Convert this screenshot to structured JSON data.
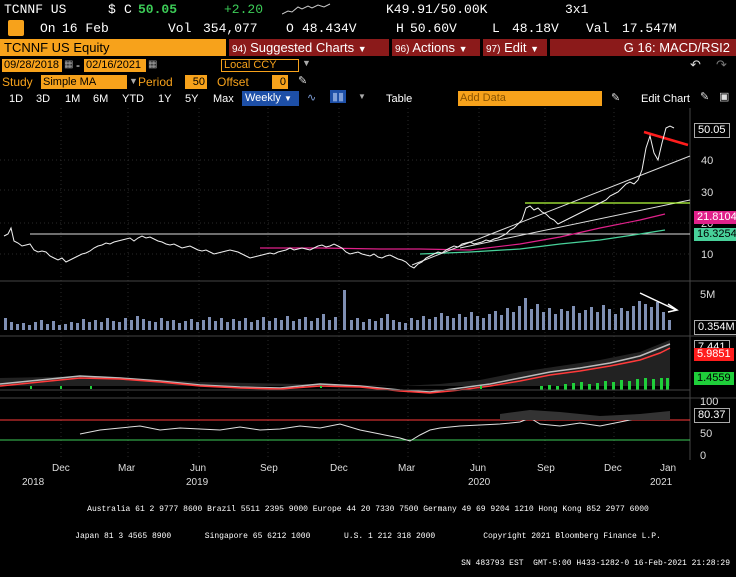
{
  "header": {
    "ticker": "TCNNF US",
    "currency_symbol": "$",
    "c_label": "C",
    "last_price": "50.05",
    "change": "+2.20",
    "bid_ask": "K49.91/50.00K",
    "size": "3x1",
    "on_label": "On",
    "date": "16 Feb",
    "vol_label": "Vol",
    "volume": "354,077",
    "open_label": "O",
    "open": "48.434V",
    "high_label": "H",
    "high": "50.60V",
    "low_label": "L",
    "low": "48.18V",
    "val_label": "Val",
    "value": "17.547M"
  },
  "toolbar": {
    "title": "TCNNF US Equity",
    "suggested_num": "94)",
    "suggested": "Suggested Charts",
    "actions_num": "96)",
    "actions": "Actions",
    "edit_num": "97)",
    "edit": "Edit",
    "chart_id": "G 16: MACD/RSI2"
  },
  "range": {
    "start": "09/28/2018",
    "end": "02/16/2021",
    "currency": "Local CCY"
  },
  "study": {
    "label": "Study",
    "type": "Simple MA",
    "period_label": "Period",
    "period": "50",
    "offset_label": "Offset",
    "offset": "0"
  },
  "periods": {
    "items": [
      "1D",
      "3D",
      "1M",
      "6M",
      "YTD",
      "1Y",
      "5Y",
      "Max"
    ],
    "frequency": "Weekly",
    "table": "Table",
    "add_data_placeholder": "Add Data",
    "edit_chart": "Edit Chart"
  },
  "chart_data": {
    "type": "line",
    "price_axis_ticks": [
      "50.05",
      "40",
      "30",
      "20",
      "10"
    ],
    "price_tags": {
      "last": "50.05",
      "ma_short": "21.8104",
      "ma_long": "16.3254"
    },
    "volume_axis_ticks": [
      "5M"
    ],
    "volume_last": "0.354M",
    "macd_tags": {
      "macd": "7.441",
      "signal": "5.9851",
      "hist": "1.4559"
    },
    "rsi_axis_ticks": [
      "100",
      "50",
      "0"
    ],
    "rsi_last": "80.37",
    "x_labels": [
      "Dec",
      "Mar",
      "Jun",
      "Sep",
      "Dec",
      "Mar",
      "Jun",
      "Sep",
      "Dec",
      "Jan"
    ],
    "year_labels": [
      "2018",
      "2019",
      "2020",
      "2021"
    ],
    "colors": {
      "price": "#ffffff",
      "ma_short": "#e0218a",
      "ma_long": "#48d19a",
      "volume": "#7f8fb3",
      "macd_signal": "#ff3a3a",
      "histogram": "#1fcf3a",
      "trend_red": "#ff1d1d",
      "trend_green": "#b5ff3c"
    }
  },
  "footer": {
    "line1": "Australia 61 2 9777 8600 Brazil 5511 2395 9000 Europe 44 20 7330 7500 Germany 49 69 9204 1210 Hong Kong 852 2977 6000",
    "line2": "Japan 81 3 4565 8900       Singapore 65 6212 1000       U.S. 1 212 318 2000          Copyright 2021 Bloomberg Finance L.P.",
    "line3": "SN 483793 EST  GMT-5:00 H433-1282-0 16-Feb-2021 21:28:29"
  }
}
